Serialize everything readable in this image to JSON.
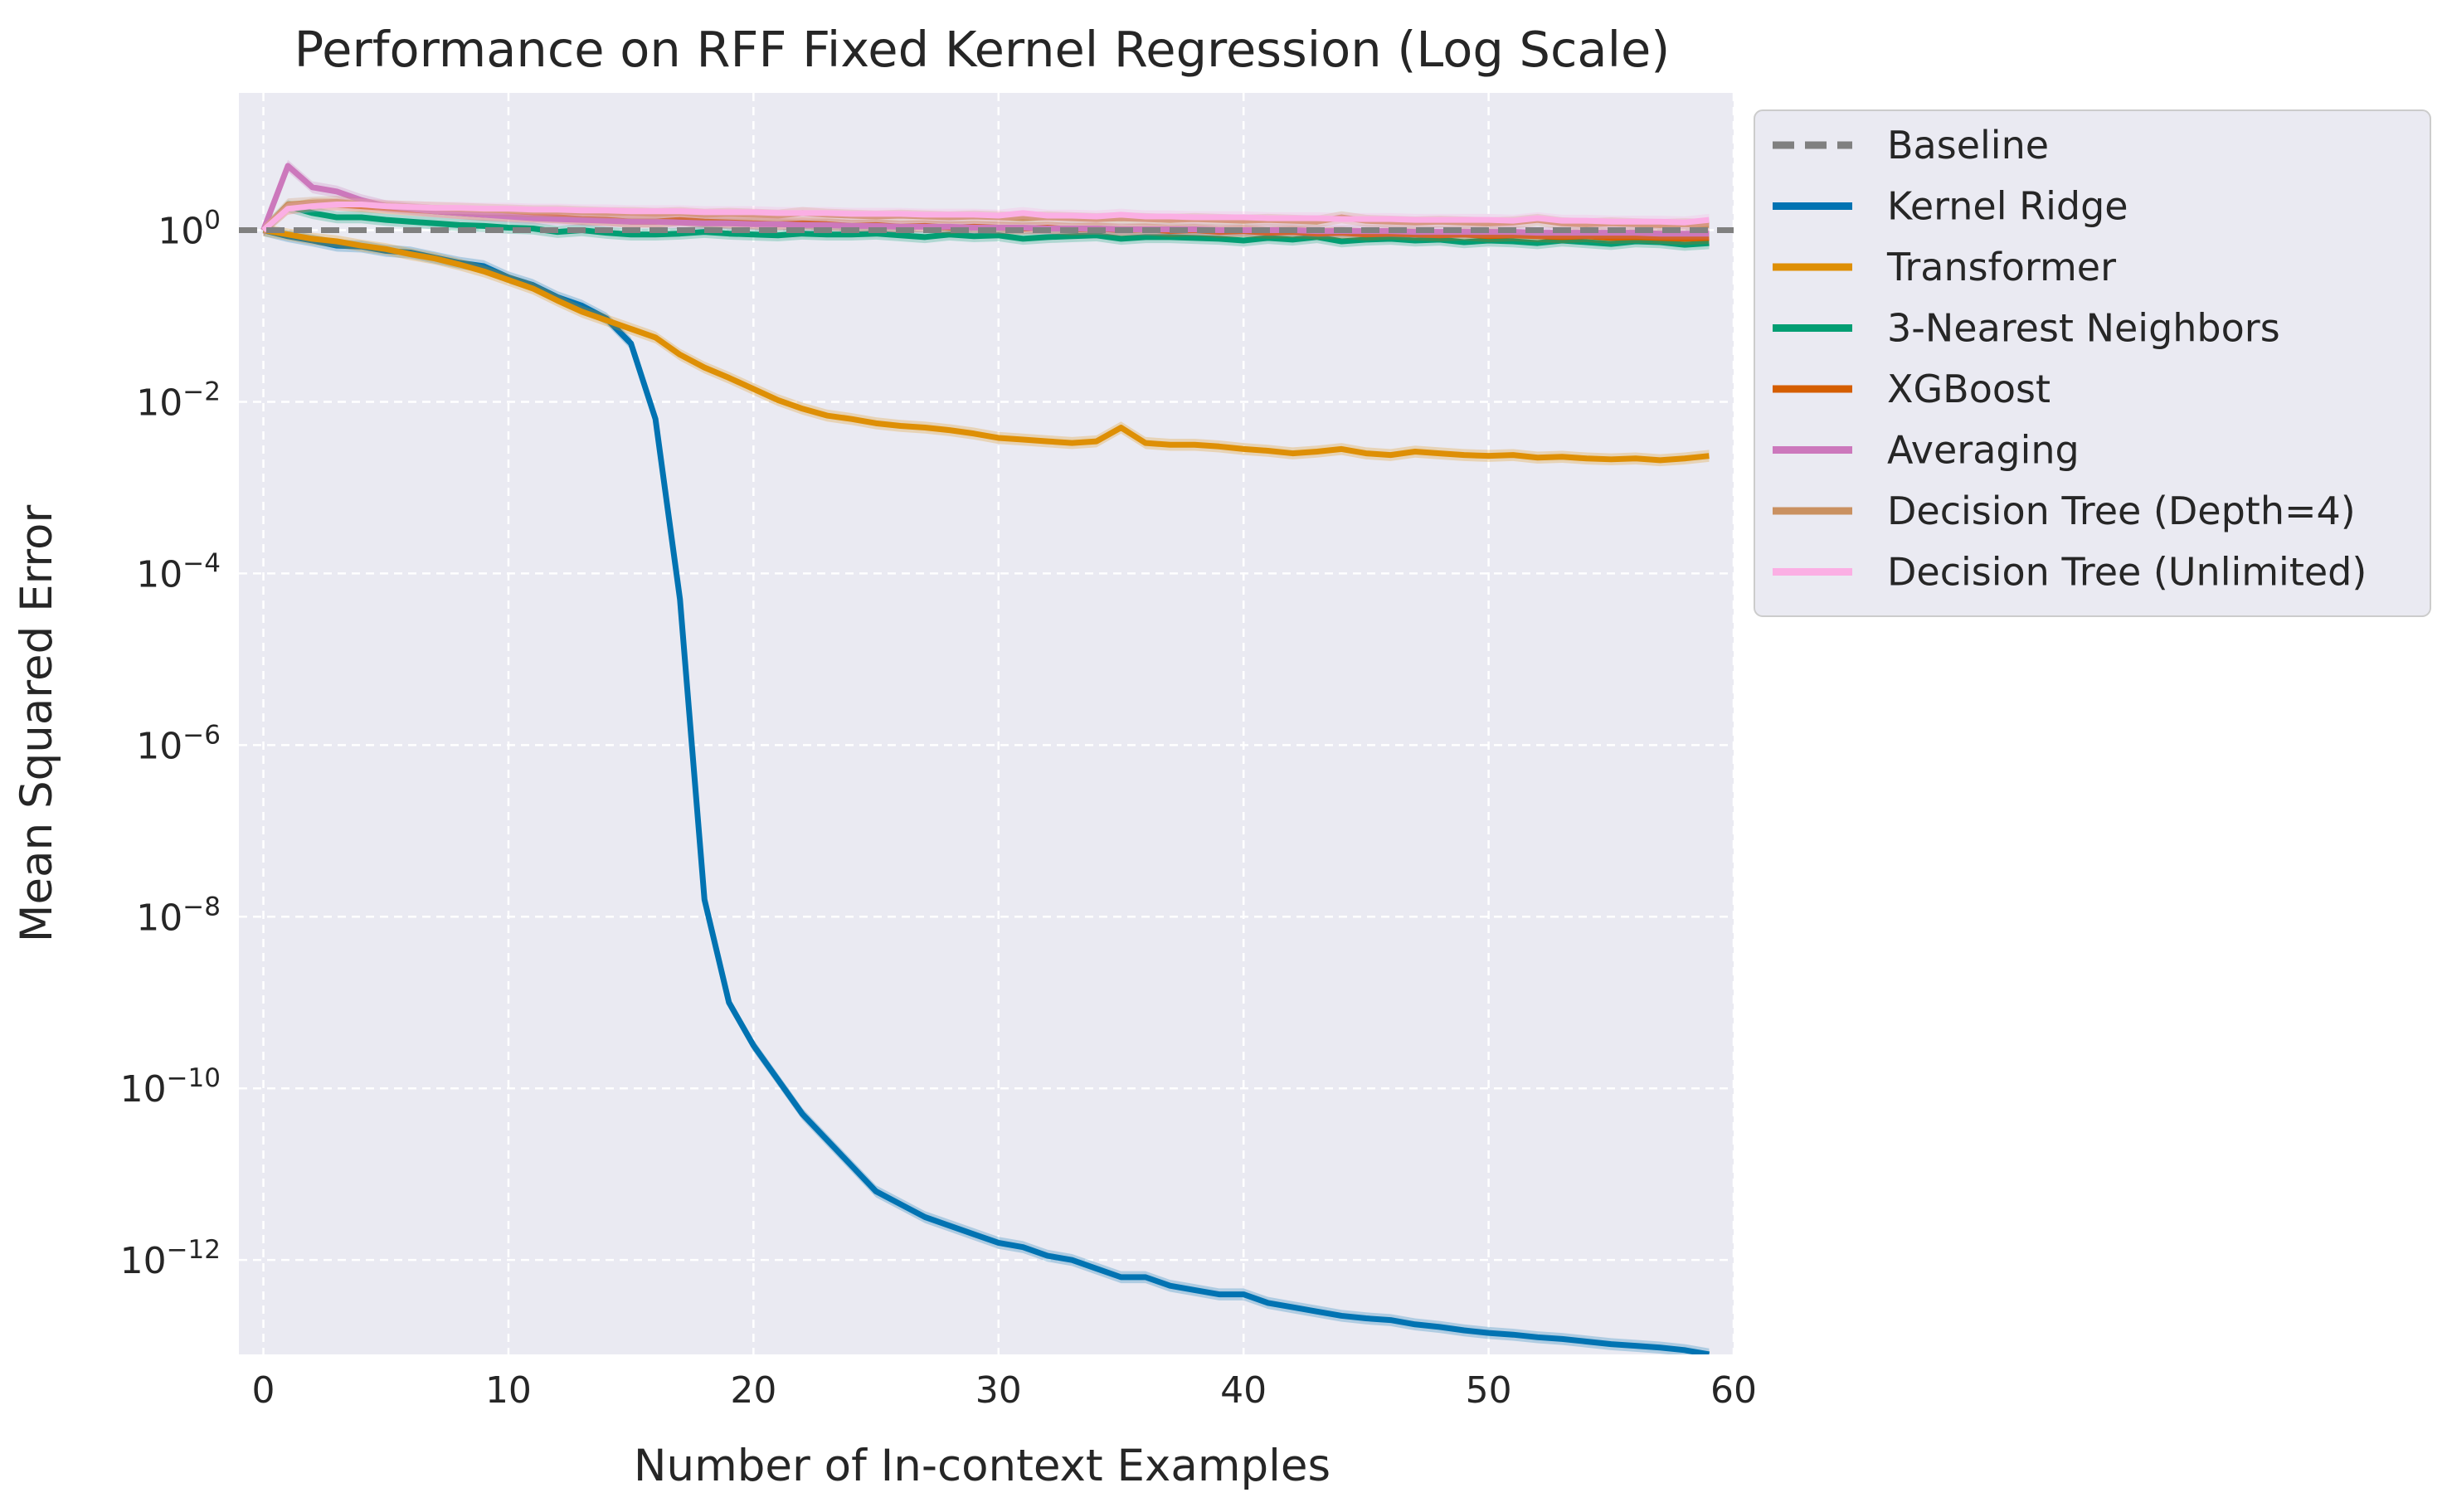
{
  "chart_data": {
    "type": "line",
    "title": "Performance on RFF Fixed Kernel Regression (Log Scale)",
    "xlabel": "Number of In-context Examples",
    "ylabel": "Mean Squared Error",
    "yscale": "log",
    "xlim": [
      -1,
      60
    ],
    "ylim_log10": [
      -13.1,
      1.6
    ],
    "xticks": [
      "0",
      "10",
      "20",
      "30",
      "40",
      "50",
      "60"
    ],
    "yticks_exponents": [
      "0",
      "−2",
      "−4",
      "−6",
      "−8",
      "−10",
      "−12"
    ],
    "yticks_base": "10",
    "grid": true,
    "legend_position": "outside-upper-right",
    "background": "#eaeaf2",
    "series": [
      {
        "name": "Baseline",
        "color": "#808080",
        "style": "dashed",
        "x": [
          -1,
          60
        ],
        "y": [
          1,
          1
        ]
      },
      {
        "name": "Kernel Ridge",
        "color": "#0173b2",
        "y_log10": [
          0,
          -0.07,
          -0.12,
          -0.18,
          -0.19,
          -0.24,
          -0.26,
          -0.32,
          -0.38,
          -0.42,
          -0.55,
          -0.64,
          -0.78,
          -0.88,
          -1.03,
          -1.32,
          -2.2,
          -4.3,
          -7.8,
          -9.0,
          -9.5,
          -9.9,
          -10.3,
          -10.6,
          -10.9,
          -11.2,
          -11.35,
          -11.5,
          -11.6,
          -11.7,
          -11.8,
          -11.85,
          -11.95,
          -12.0,
          -12.1,
          -12.2,
          -12.2,
          -12.3,
          -12.35,
          -12.4,
          -12.4,
          -12.5,
          -12.55,
          -12.6,
          -12.65,
          -12.68,
          -12.7,
          -12.75,
          -12.78,
          -12.82,
          -12.85,
          -12.87,
          -12.9,
          -12.92,
          -12.95,
          -12.98,
          -13.0,
          -13.02,
          -13.05,
          -13.1
        ]
      },
      {
        "name": "Transformer",
        "color": "#de8f05",
        "y_log10": [
          0,
          -0.05,
          -0.1,
          -0.13,
          -0.18,
          -0.22,
          -0.28,
          -0.33,
          -0.4,
          -0.48,
          -0.58,
          -0.68,
          -0.82,
          -0.95,
          -1.05,
          -1.15,
          -1.25,
          -1.45,
          -1.6,
          -1.72,
          -1.85,
          -1.98,
          -2.08,
          -2.16,
          -2.2,
          -2.25,
          -2.28,
          -2.3,
          -2.33,
          -2.37,
          -2.42,
          -2.44,
          -2.46,
          -2.48,
          -2.46,
          -2.3,
          -2.48,
          -2.5,
          -2.5,
          -2.52,
          -2.55,
          -2.57,
          -2.6,
          -2.58,
          -2.55,
          -2.6,
          -2.62,
          -2.58,
          -2.6,
          -2.62,
          -2.63,
          -2.62,
          -2.65,
          -2.64,
          -2.66,
          -2.67,
          -2.66,
          -2.68,
          -2.66,
          -2.63
        ]
      },
      {
        "name": "3-Nearest Neighbors",
        "color": "#029e73",
        "y_log10": [
          0,
          0.28,
          0.2,
          0.15,
          0.15,
          0.12,
          0.1,
          0.08,
          0.06,
          0.05,
          0.03,
          0.02,
          -0.02,
          0.0,
          -0.03,
          -0.05,
          -0.05,
          -0.04,
          -0.02,
          -0.04,
          -0.05,
          -0.06,
          -0.04,
          -0.05,
          -0.05,
          -0.04,
          -0.06,
          -0.08,
          -0.05,
          -0.07,
          -0.06,
          -0.1,
          -0.08,
          -0.07,
          -0.06,
          -0.1,
          -0.08,
          -0.08,
          -0.09,
          -0.1,
          -0.12,
          -0.09,
          -0.11,
          -0.08,
          -0.13,
          -0.11,
          -0.1,
          -0.12,
          -0.11,
          -0.14,
          -0.12,
          -0.13,
          -0.15,
          -0.12,
          -0.14,
          -0.16,
          -0.13,
          -0.14,
          -0.17,
          -0.15
        ]
      },
      {
        "name": "XGBoost",
        "color": "#d55e00",
        "y_log10": [
          0,
          0.25,
          0.3,
          0.3,
          0.28,
          0.26,
          0.24,
          0.22,
          0.2,
          0.18,
          0.17,
          0.16,
          0.15,
          0.13,
          0.12,
          0.1,
          0.1,
          0.12,
          0.1,
          0.09,
          0.08,
          0.07,
          0.08,
          0.07,
          0.05,
          0.06,
          0.04,
          0.05,
          0.03,
          0.04,
          0.03,
          0.02,
          0.03,
          0.01,
          0.02,
          0.0,
          0.01,
          -0.01,
          0.0,
          -0.02,
          -0.01,
          -0.03,
          -0.02,
          -0.04,
          -0.03,
          -0.05,
          -0.04,
          -0.05,
          -0.06,
          -0.05,
          -0.07,
          -0.06,
          -0.07,
          -0.08,
          -0.07,
          -0.09,
          -0.08,
          -0.09,
          -0.1,
          -0.09
        ]
      },
      {
        "name": "Averaging",
        "color": "#cc78bc",
        "y_log10": [
          0,
          0.75,
          0.5,
          0.45,
          0.35,
          0.28,
          0.25,
          0.22,
          0.2,
          0.18,
          0.16,
          0.14,
          0.13,
          0.12,
          0.11,
          0.1,
          0.1,
          0.09,
          0.08,
          0.08,
          0.07,
          0.07,
          0.06,
          0.06,
          0.05,
          0.05,
          0.04,
          0.04,
          0.04,
          0.03,
          0.03,
          0.03,
          0.02,
          0.02,
          0.02,
          0.01,
          0.01,
          0.01,
          0.01,
          0.0,
          0.0,
          0.0,
          0.0,
          -0.01,
          -0.01,
          -0.01,
          -0.01,
          -0.02,
          -0.02,
          -0.02,
          -0.02,
          -0.02,
          -0.03,
          -0.03,
          -0.03,
          -0.03,
          -0.03,
          -0.04,
          -0.04,
          -0.04
        ]
      },
      {
        "name": "Decision Tree (Depth=4)",
        "color": "#ca9161",
        "y_log10": [
          0,
          0.3,
          0.32,
          0.33,
          0.3,
          0.28,
          0.27,
          0.26,
          0.25,
          0.24,
          0.23,
          0.22,
          0.22,
          0.21,
          0.2,
          0.2,
          0.19,
          0.2,
          0.18,
          0.19,
          0.18,
          0.17,
          0.2,
          0.18,
          0.17,
          0.16,
          0.17,
          0.16,
          0.15,
          0.16,
          0.15,
          0.14,
          0.15,
          0.14,
          0.13,
          0.14,
          0.13,
          0.12,
          0.13,
          0.12,
          0.11,
          0.12,
          0.11,
          0.1,
          0.15,
          0.11,
          0.1,
          0.09,
          0.1,
          0.09,
          0.08,
          0.09,
          0.12,
          0.08,
          0.07,
          0.08,
          0.07,
          0.06,
          0.07,
          0.06
        ]
      },
      {
        "name": "Decision Tree (Unlimited)",
        "color": "#fbafe4",
        "y_log10": [
          0,
          0.25,
          0.28,
          0.3,
          0.3,
          0.28,
          0.27,
          0.26,
          0.26,
          0.25,
          0.25,
          0.24,
          0.24,
          0.23,
          0.23,
          0.22,
          0.22,
          0.22,
          0.21,
          0.21,
          0.21,
          0.2,
          0.2,
          0.2,
          0.19,
          0.19,
          0.19,
          0.18,
          0.18,
          0.18,
          0.17,
          0.2,
          0.17,
          0.17,
          0.16,
          0.18,
          0.16,
          0.16,
          0.15,
          0.15,
          0.15,
          0.14,
          0.14,
          0.14,
          0.13,
          0.13,
          0.13,
          0.12,
          0.12,
          0.12,
          0.12,
          0.11,
          0.14,
          0.11,
          0.11,
          0.1,
          0.1,
          0.1,
          0.09,
          0.12
        ]
      }
    ]
  }
}
